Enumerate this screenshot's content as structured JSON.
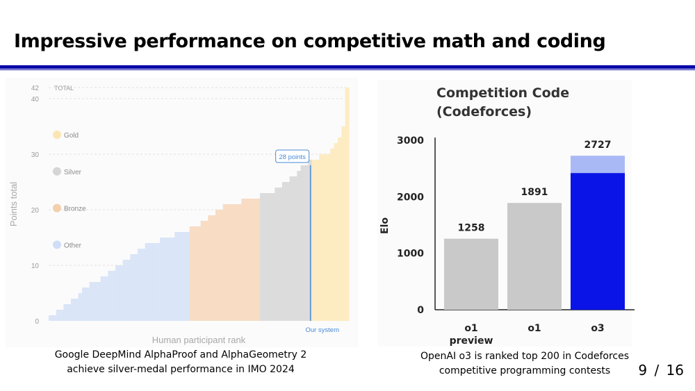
{
  "slide": {
    "title": "Impressive performance on competitive math and coding",
    "page_current": "9",
    "page_separator": "/",
    "page_total": "16"
  },
  "captions": {
    "imo_line1": "Google DeepMind AlphaProof and AlphaGeometry 2",
    "imo_line2": "achieve silver-medal performance in IMO 2024",
    "cf_line1": "OpenAI o3 is ranked top 200 in Codeforces",
    "cf_line2": "competitive programming contests"
  },
  "chart_data": [
    {
      "type": "bar",
      "title": "",
      "xlabel": "Human participant rank",
      "ylabel": "Points total",
      "ylim": [
        0,
        42
      ],
      "y_ticks": [
        0,
        10,
        20,
        30,
        40,
        42
      ],
      "total_label": "TOTAL",
      "grid": "dashed horizontal",
      "legend_position": "left inside",
      "legend": [
        {
          "name": "Gold",
          "color": "#fbe6b3"
        },
        {
          "name": "Silver",
          "color": "#d5d5d5"
        },
        {
          "name": "Bronze",
          "color": "#f4cfae"
        },
        {
          "name": "Other",
          "color": "#cfddf6"
        }
      ],
      "segments": [
        {
          "medal": "Other",
          "color": "#dae5f7",
          "steps": [
            1,
            1,
            2,
            2,
            3,
            3,
            4,
            4,
            5,
            6,
            6,
            7,
            7,
            7,
            8,
            8,
            9,
            9,
            10,
            10,
            11,
            11,
            12,
            12,
            13,
            13,
            14,
            14,
            14,
            14,
            15,
            15,
            15,
            15,
            16,
            16,
            16,
            16
          ]
        },
        {
          "medal": "Bronze",
          "color": "#f8dcc4",
          "steps": [
            17,
            17,
            17,
            18,
            18,
            19,
            19,
            20,
            20,
            21,
            21,
            21,
            21,
            21,
            22,
            22,
            22,
            22,
            22
          ]
        },
        {
          "medal": "Silver",
          "color": "#dcdcdc",
          "steps": [
            23,
            23,
            23,
            23,
            24,
            24,
            25,
            25,
            26,
            26,
            27,
            28,
            28,
            29
          ]
        },
        {
          "medal": "Gold",
          "color": "#fdecc2",
          "steps": [
            29,
            29,
            30,
            30,
            30,
            31,
            32,
            33,
            35,
            42
          ]
        }
      ],
      "our_system": {
        "label": "Our system",
        "points": 28,
        "callout": "28 points",
        "color": "#4a8bd6"
      }
    },
    {
      "type": "bar",
      "title": "Competition Code",
      "subtitle": "(Codeforces)",
      "xlabel": "",
      "ylabel": "Elo",
      "ylim": [
        0,
        3000
      ],
      "y_ticks": [
        0,
        1000,
        2000,
        3000
      ],
      "categories": [
        {
          "line1": "o1",
          "line2": "preview"
        },
        {
          "line1": "o1",
          "line2": ""
        },
        {
          "line1": "o3",
          "line2": ""
        }
      ],
      "values": [
        1258,
        1891,
        2727
      ],
      "value_labels": [
        "1258",
        "1891",
        "2727"
      ],
      "stacked_base_o3": 2420,
      "colors": {
        "gray": "#c9c9c9",
        "o3_base": "#0b14e6",
        "o3_top": "#a9b9f5"
      }
    }
  ]
}
